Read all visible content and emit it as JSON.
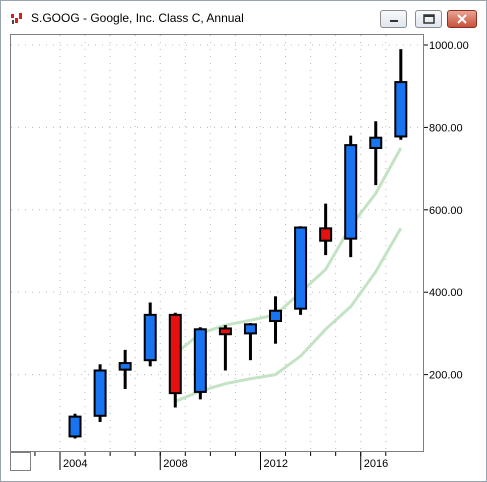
{
  "window": {
    "title": "S.GOOG - Google, Inc. Class C, Annual",
    "icon": "chart-app-icon",
    "controls": [
      "minimize-icon",
      "maximize-icon",
      "close-icon"
    ]
  },
  "colors": {
    "up_candle": "#1874f0",
    "down_candle": "#e61010",
    "moving_average": "#c4e3c4",
    "close_button": "#c7503a"
  },
  "chart_data": {
    "type": "candlestick",
    "title": "S.GOOG - Google, Inc. Class C, Annual",
    "x_tick_labels": [
      "2004",
      "2008",
      "2012",
      "2016"
    ],
    "y_tick_labels": [
      "200.00",
      "400.00",
      "600.00",
      "800.00",
      "1000.00"
    ],
    "y_axis_position": "right",
    "xlim": [
      2002.4,
      2018.7
    ],
    "ylim": [
      0,
      1020
    ],
    "grid": "dotted vertical and horizontal",
    "candles": [
      {
        "x": 2004.6,
        "open": 50,
        "high": 105,
        "low": 45,
        "close": 98
      },
      {
        "x": 2005.6,
        "open": 100,
        "high": 225,
        "low": 85,
        "close": 210
      },
      {
        "x": 2006.6,
        "open": 212,
        "high": 260,
        "low": 165,
        "close": 228
      },
      {
        "x": 2007.6,
        "open": 235,
        "high": 375,
        "low": 220,
        "close": 345
      },
      {
        "x": 2008.6,
        "open": 345,
        "high": 350,
        "low": 120,
        "close": 155
      },
      {
        "x": 2009.6,
        "open": 158,
        "high": 315,
        "low": 140,
        "close": 310
      },
      {
        "x": 2010.6,
        "open": 312,
        "high": 320,
        "low": 210,
        "close": 298
      },
      {
        "x": 2011.6,
        "open": 300,
        "high": 325,
        "low": 235,
        "close": 322
      },
      {
        "x": 2012.6,
        "open": 330,
        "high": 390,
        "low": 275,
        "close": 355
      },
      {
        "x": 2013.6,
        "open": 360,
        "high": 560,
        "low": 345,
        "close": 557
      },
      {
        "x": 2014.6,
        "open": 555,
        "high": 615,
        "low": 490,
        "close": 525
      },
      {
        "x": 2015.6,
        "open": 530,
        "high": 780,
        "low": 485,
        "close": 757
      },
      {
        "x": 2016.6,
        "open": 750,
        "high": 815,
        "low": 660,
        "close": 775
      },
      {
        "x": 2017.6,
        "open": 778,
        "high": 990,
        "low": 770,
        "close": 910
      }
    ],
    "moving_averages": [
      {
        "values": [
          [
            2008.6,
            135
          ],
          [
            2009.6,
            160
          ],
          [
            2010.6,
            178
          ],
          [
            2011.6,
            190
          ],
          [
            2012.6,
            200
          ],
          [
            2013.6,
            245
          ],
          [
            2014.6,
            310
          ],
          [
            2015.6,
            365
          ],
          [
            2016.6,
            450
          ],
          [
            2017.6,
            555
          ]
        ]
      },
      {
        "values": [
          [
            2008.6,
            250
          ],
          [
            2009.6,
            300
          ],
          [
            2010.6,
            320
          ],
          [
            2011.6,
            332
          ],
          [
            2012.6,
            345
          ],
          [
            2013.6,
            400
          ],
          [
            2014.6,
            455
          ],
          [
            2015.6,
            560
          ],
          [
            2016.6,
            640
          ],
          [
            2017.6,
            750
          ]
        ]
      }
    ]
  }
}
